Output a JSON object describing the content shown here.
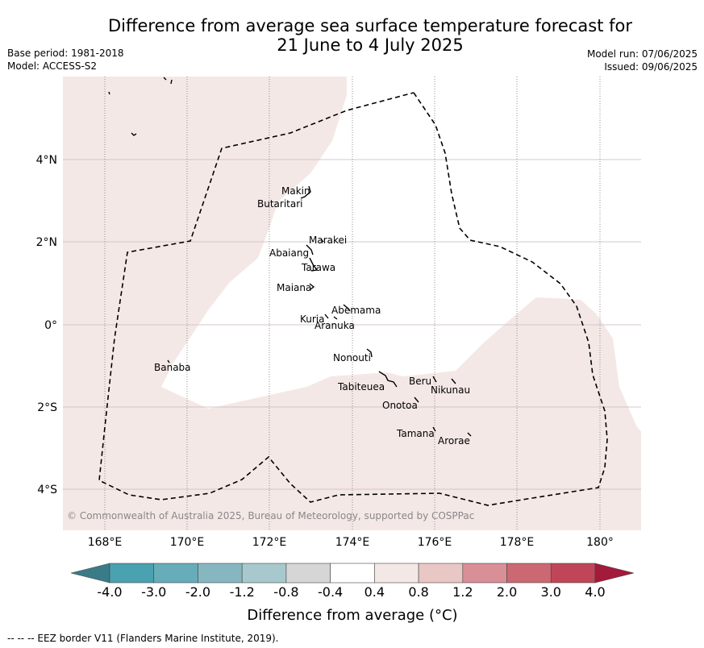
{
  "title_line1": "Difference from average sea surface temperature forecast for",
  "title_line2": "21 June to 4 July 2025",
  "meta_left": {
    "base_period": "Base period: 1981-2018",
    "model": "Model: ACCESS-S2"
  },
  "meta_right": {
    "model_run": "Model run: 07/06/2025",
    "issued": "Issued: 09/06/2025"
  },
  "map": {
    "lon_ticks": [
      "168°E",
      "170°E",
      "172°E",
      "174°E",
      "176°E",
      "178°E",
      "180°"
    ],
    "lat_ticks": [
      "4°N",
      "2°N",
      "0°",
      "2°S",
      "4°S"
    ],
    "copyright": "© Commonwealth of Australia 2025, Bureau of Meteorology, supported by COSPPac",
    "places": [
      {
        "name": "Makin"
      },
      {
        "name": "Butaritari"
      },
      {
        "name": "Marakei"
      },
      {
        "name": "Abaiang"
      },
      {
        "name": "Tarawa"
      },
      {
        "name": "Maiana"
      },
      {
        "name": "Abemama"
      },
      {
        "name": "Kuria"
      },
      {
        "name": "Aranuka"
      },
      {
        "name": "Banaba"
      },
      {
        "name": "Nonouti"
      },
      {
        "name": "Beru"
      },
      {
        "name": "Tabiteuea"
      },
      {
        "name": "Nikunau"
      },
      {
        "name": "Onotoa"
      },
      {
        "name": "Tamana"
      },
      {
        "name": "Arorae"
      }
    ],
    "anomaly_fill_color": "#f4e8e6",
    "eez_line_color": "#000000"
  },
  "colorbar": {
    "labels": [
      "-4.0",
      "-3.0",
      "-2.0",
      "-1.2",
      "-0.8",
      "-0.4",
      "0.4",
      "0.8",
      "1.2",
      "2.0",
      "3.0",
      "4.0"
    ],
    "colors": [
      "#3a7b88",
      "#4aa1b0",
      "#67acb9",
      "#86b7c1",
      "#a7c9cd",
      "#d6d6d6",
      "#ffffff",
      "#f4e8e6",
      "#e9c7c4",
      "#d98f96",
      "#cc6872",
      "#c14558",
      "#a31a3a"
    ],
    "label": "Difference from average (°C)"
  },
  "footer": "--  --  -- EEZ border V11 (Flanders Marine Institute, 2019)."
}
